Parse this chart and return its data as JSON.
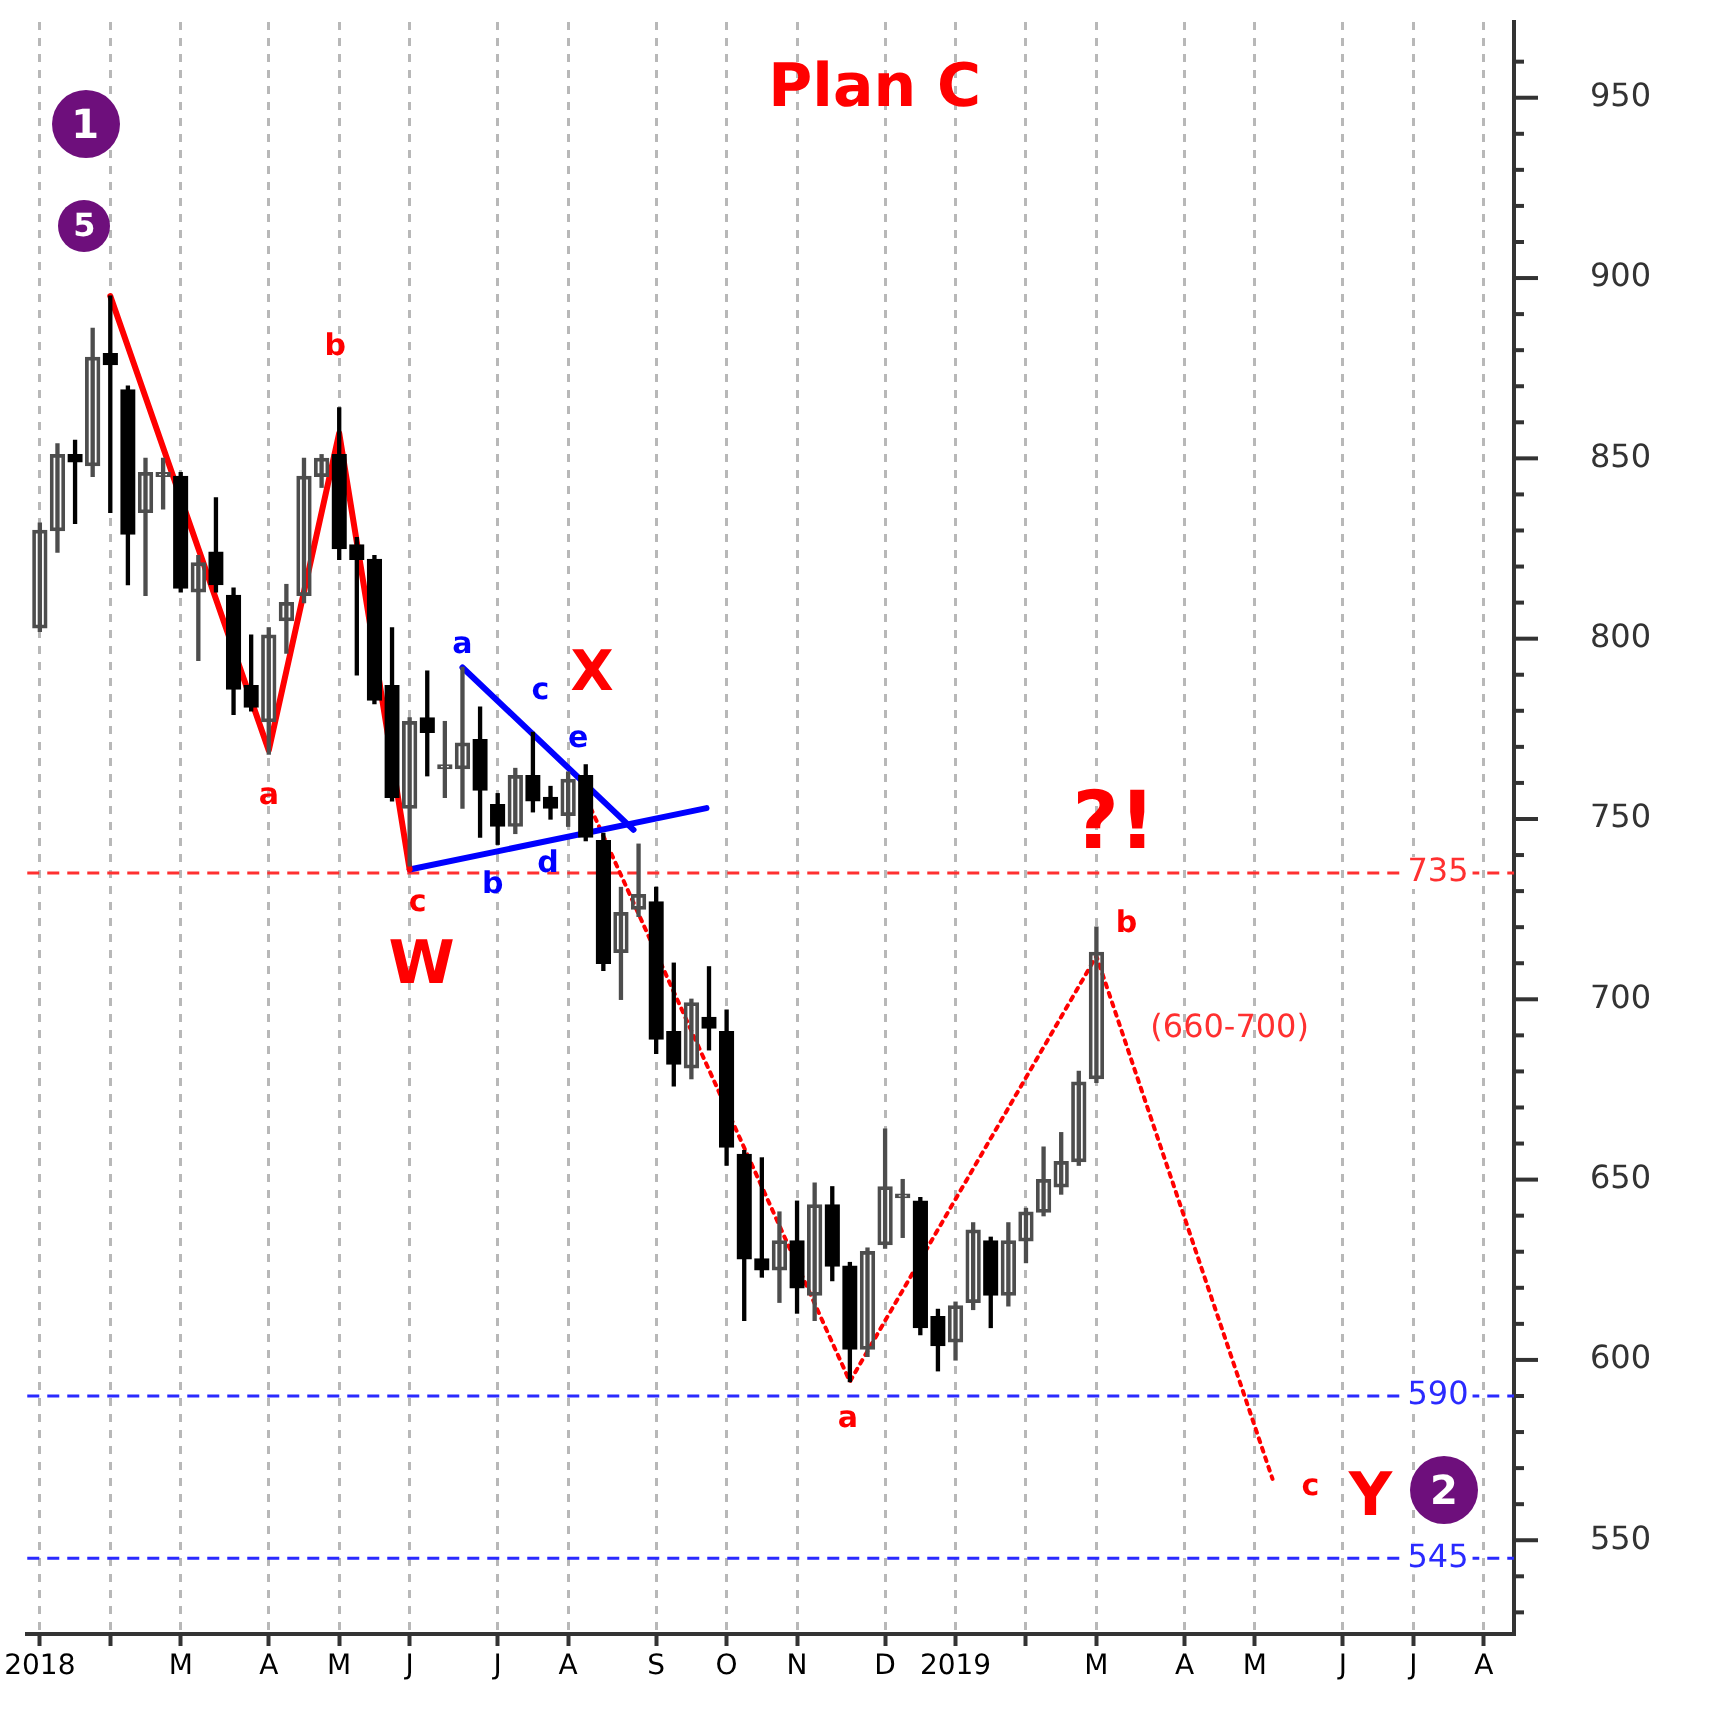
{
  "chart_data": {
    "type": "candlestick",
    "title": "Plan C",
    "x": [
      "2018-01-05",
      "2018-01-12",
      "2018-01-19",
      "2018-01-26",
      "2018-02-02",
      "2018-02-09",
      "2018-02-16",
      "2018-02-23",
      "2018-03-02",
      "2018-03-09",
      "2018-03-16",
      "2018-03-23",
      "2018-03-30",
      "2018-04-06",
      "2018-04-13",
      "2018-04-20",
      "2018-04-27",
      "2018-05-04",
      "2018-05-11",
      "2018-05-18",
      "2018-05-25",
      "2018-06-01",
      "2018-06-08",
      "2018-06-15",
      "2018-06-22",
      "2018-06-29",
      "2018-07-06",
      "2018-07-13",
      "2018-07-20",
      "2018-07-27",
      "2018-08-03",
      "2018-08-10",
      "2018-08-17",
      "2018-08-24",
      "2018-08-31",
      "2018-09-07",
      "2018-09-14",
      "2018-09-21",
      "2018-09-28",
      "2018-10-05",
      "2018-10-12",
      "2018-10-19",
      "2018-10-26",
      "2018-11-02",
      "2018-11-09",
      "2018-11-16",
      "2018-11-23",
      "2018-11-30",
      "2018-12-07",
      "2018-12-14",
      "2018-12-21",
      "2018-12-28",
      "2019-01-04",
      "2019-01-11",
      "2019-01-18",
      "2019-01-25",
      "2019-02-01",
      "2019-02-08",
      "2019-02-15",
      "2019-02-22",
      "2019-03-01"
    ],
    "ohlc": [
      [
        803,
        832,
        802,
        830
      ],
      [
        830,
        854,
        824,
        851
      ],
      [
        851,
        855,
        832,
        849
      ],
      [
        848,
        886,
        845,
        878
      ],
      [
        879,
        895,
        835,
        876
      ],
      [
        869,
        870,
        815,
        829
      ],
      [
        835,
        850,
        812,
        846
      ],
      [
        845,
        850,
        836,
        846
      ],
      [
        845,
        846,
        813,
        814
      ],
      [
        813,
        823,
        794,
        821
      ],
      [
        824,
        839,
        813,
        815
      ],
      [
        812,
        814,
        779,
        786
      ],
      [
        787,
        801,
        780,
        781
      ],
      [
        777,
        803,
        768,
        801
      ],
      [
        805,
        815,
        796,
        810
      ],
      [
        812,
        850,
        810,
        845
      ],
      [
        845,
        851,
        842,
        850
      ],
      [
        851,
        864,
        822,
        825
      ],
      [
        826,
        828,
        790,
        822
      ],
      [
        822,
        823,
        782,
        783
      ],
      [
        787,
        803,
        755,
        756
      ],
      [
        753,
        778,
        737,
        777
      ],
      [
        778,
        791,
        762,
        774
      ],
      [
        764,
        777,
        756,
        765
      ],
      [
        764,
        792,
        753,
        771
      ],
      [
        772,
        781,
        745,
        758
      ],
      [
        754,
        757,
        743,
        748
      ],
      [
        748,
        764,
        746,
        762
      ],
      [
        762,
        774,
        752,
        755
      ],
      [
        756,
        759,
        750,
        753
      ],
      [
        751,
        763,
        748,
        761
      ],
      [
        762,
        765,
        744,
        745
      ],
      [
        744,
        746,
        708,
        710
      ],
      [
        713,
        731,
        700,
        724
      ],
      [
        725,
        743,
        723,
        729
      ],
      [
        727,
        731,
        685,
        689
      ],
      [
        691,
        710,
        676,
        682
      ],
      [
        681,
        700,
        678,
        699
      ],
      [
        695,
        709,
        686,
        692
      ],
      [
        691,
        697,
        654,
        659
      ],
      [
        657,
        658,
        611,
        628
      ],
      [
        628,
        656,
        623,
        625
      ],
      [
        625,
        641,
        616,
        633
      ],
      [
        633,
        644,
        613,
        620
      ],
      [
        618,
        649,
        611,
        643
      ],
      [
        643,
        648,
        622,
        626
      ],
      [
        626,
        627,
        594,
        603
      ],
      [
        603,
        631,
        601,
        630
      ],
      [
        632,
        664,
        631,
        648
      ],
      [
        645,
        650,
        634,
        646
      ],
      [
        644,
        645,
        607,
        609
      ],
      [
        612,
        614,
        597,
        604
      ],
      [
        605,
        616,
        600,
        615
      ],
      [
        616,
        638,
        614,
        636
      ],
      [
        633,
        634,
        609,
        618
      ],
      [
        618,
        638,
        615,
        633
      ],
      [
        633,
        642,
        627,
        641
      ],
      [
        641,
        659,
        640,
        650
      ],
      [
        648,
        663,
        646,
        655
      ],
      [
        655,
        680,
        654,
        677
      ],
      [
        678,
        720,
        677,
        713
      ]
    ],
    "colors": [
      "#4d4d4d",
      "#4d4d4d",
      "#000000",
      "#4d4d4d",
      "#000000",
      "#000000",
      "#4d4d4d",
      "#4d4d4d",
      "#000000",
      "#4d4d4d",
      "#000000",
      "#000000",
      "#000000",
      "#4d4d4d",
      "#4d4d4d",
      "#4d4d4d",
      "#4d4d4d",
      "#000000",
      "#000000",
      "#000000",
      "#000000",
      "#4d4d4d",
      "#000000",
      "#4d4d4d",
      "#4d4d4d",
      "#000000",
      "#000000",
      "#4d4d4d",
      "#000000",
      "#000000",
      "#4d4d4d",
      "#000000",
      "#000000",
      "#4d4d4d",
      "#4d4d4d",
      "#000000",
      "#000000",
      "#4d4d4d",
      "#000000",
      "#000000",
      "#000000",
      "#000000",
      "#4d4d4d",
      "#000000",
      "#4d4d4d",
      "#000000",
      "#000000",
      "#4d4d4d",
      "#4d4d4d",
      "#4d4d4d",
      "#000000",
      "#000000",
      "#4d4d4d",
      "#4d4d4d",
      "#000000",
      "#4d4d4d",
      "#4d4d4d",
      "#4d4d4d",
      "#4d4d4d",
      "#4d4d4d",
      "#4d4d4d"
    ],
    "series": [
      {
        "type": "line",
        "color": "#ff0000",
        "line_style": "solid",
        "x": [
          "2018-02-02",
          "2018-04-06",
          "2018-05-04",
          "2018-06-01"
        ],
        "values": [
          895,
          769,
          857,
          736
        ]
      },
      {
        "type": "line",
        "color": "#0000ff",
        "line_style": "solid",
        "x": [
          "2018-06-22",
          "2018-08-29"
        ],
        "values": [
          792,
          747
        ]
      },
      {
        "type": "line",
        "color": "#0000ff",
        "line_style": "solid",
        "x": [
          "2018-06-01",
          "2018-09-27"
        ],
        "values": [
          736,
          753
        ]
      },
      {
        "type": "line",
        "color": "#ff0000",
        "line_style": "dotted",
        "x": [
          "2018-08-12",
          "2018-11-23",
          "2019-03-01",
          "2019-05-10"
        ],
        "values": [
          753,
          594,
          712,
          567
        ]
      }
    ],
    "xlim": [
      "2017-12-31",
      "2019-08-14"
    ],
    "xticks": [
      {
        "value": "2018-01-05",
        "label": "2018"
      },
      {
        "value": "2018-02-02",
        "label": null
      },
      {
        "value": "2018-03-02",
        "label": "M"
      },
      {
        "value": "2018-04-06",
        "label": "A"
      },
      {
        "value": "2018-05-04",
        "label": "M"
      },
      {
        "value": "2018-06-01",
        "label": "J"
      },
      {
        "value": "2018-07-06",
        "label": "J"
      },
      {
        "value": "2018-08-03",
        "label": "A"
      },
      {
        "value": "2018-09-07",
        "label": "S"
      },
      {
        "value": "2018-10-05",
        "label": "O"
      },
      {
        "value": "2018-11-02",
        "label": "N"
      },
      {
        "value": "2018-12-07",
        "label": "D"
      },
      {
        "value": "2019-01-04",
        "label": "2019"
      },
      {
        "value": "2019-02-01",
        "label": null
      },
      {
        "value": "2019-03-01",
        "label": "M"
      },
      {
        "value": "2019-04-05",
        "label": "A"
      },
      {
        "value": "2019-05-03",
        "label": "M"
      },
      {
        "value": "2019-06-07",
        "label": "J"
      },
      {
        "value": "2019-07-05",
        "label": "J"
      },
      {
        "value": "2019-08-02",
        "label": "A"
      }
    ],
    "ylim": [
      524,
      971
    ],
    "yticks": [
      {
        "value": 530,
        "label": null
      },
      {
        "value": 540,
        "label": null
      },
      550,
      {
        "value": 560,
        "label": null
      },
      {
        "value": 570,
        "label": null
      },
      {
        "value": 580,
        "label": null
      },
      {
        "value": 590,
        "label": null
      },
      600,
      {
        "value": 610,
        "label": null
      },
      {
        "value": 620,
        "label": null
      },
      {
        "value": 630,
        "label": null
      },
      {
        "value": 640,
        "label": null
      },
      650,
      {
        "value": 660,
        "label": null
      },
      {
        "value": 670,
        "label": null
      },
      {
        "value": 680,
        "label": null
      },
      {
        "value": 690,
        "label": null
      },
      700,
      {
        "value": 710,
        "label": null
      },
      {
        "value": 720,
        "label": null
      },
      {
        "value": 730,
        "label": null
      },
      {
        "value": 740,
        "label": null
      },
      750,
      {
        "value": 760,
        "label": null
      },
      {
        "value": 770,
        "label": null
      },
      {
        "value": 780,
        "label": null
      },
      {
        "value": 790,
        "label": null
      },
      800,
      {
        "value": 810,
        "label": null
      },
      {
        "value": 820,
        "label": null
      },
      {
        "value": 830,
        "label": null
      },
      {
        "value": 840,
        "label": null
      },
      850,
      {
        "value": 860,
        "label": null
      },
      {
        "value": 870,
        "label": null
      },
      {
        "value": 880,
        "label": null
      },
      {
        "value": 890,
        "label": null
      },
      900,
      {
        "value": 910,
        "label": null
      },
      {
        "value": 920,
        "label": null
      },
      {
        "value": 930,
        "label": null
      },
      {
        "value": 940,
        "label": null
      },
      950,
      {
        "value": 960,
        "label": null
      }
    ],
    "grid": "x",
    "ref_lines": [
      {
        "axis": "y",
        "value": 735,
        "label": "735",
        "color": "#ff3030",
        "line_style": "dashed"
      },
      {
        "axis": "y",
        "value": 590,
        "label": "590",
        "color": "#2a2aff",
        "line_style": "dashed"
      },
      {
        "axis": "y",
        "value": 545,
        "label": "545",
        "color": "#2a2aff",
        "line_style": "dashed"
      }
    ],
    "annotations": [
      "1",
      {
        "text": "5",
        "x": "2018-02-02",
        "y": 895
      },
      "2",
      {
        "text": "b",
        "x": "2018-05-04",
        "y": 857
      },
      {
        "text": "a",
        "x": "2018-04-06",
        "y": 769
      },
      {
        "text": "c",
        "x": "2018-06-01",
        "y": 736
      },
      {
        "text": "W",
        "x": "2018-06-01",
        "y": 736
      },
      {
        "text": "a",
        "x": "2018-06-22",
        "y": 792
      },
      {
        "text": "b",
        "x": "2018-07-04",
        "y": 741
      },
      {
        "text": "c",
        "x": "2018-07-23",
        "y": 771.5
      },
      {
        "text": "d",
        "x": "2018-07-26",
        "y": 744
      },
      {
        "text": "e",
        "x": "2018-08-07",
        "y": 761.5
      },
      {
        "text": "X",
        "x": "2018-08-07",
        "y": 761.5
      },
      {
        "text": "a",
        "x": "2018-11-23",
        "y": 594
      },
      {
        "text": "?!",
        "x": "2019-03-08",
        "y": 735
      },
      {
        "text": "b",
        "x": "2019-03-01",
        "y": 712
      },
      {
        "text": "(660-700)",
        "x": "2019-03-15",
        "y": 683
      },
      {
        "text": "c",
        "x": "2019-05-10",
        "y": 567
      },
      {
        "text": "Y",
        "x": "2019-05-10",
        "y": 567
      }
    ]
  }
}
